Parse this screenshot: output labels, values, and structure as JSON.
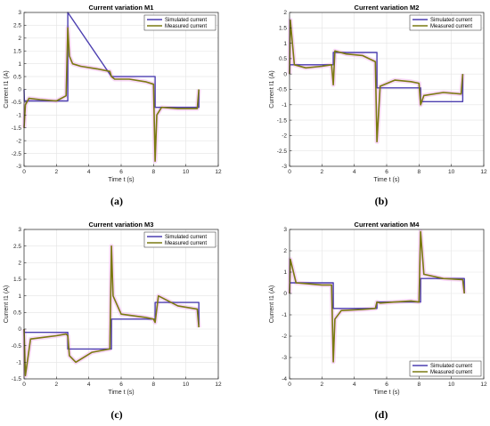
{
  "colors": {
    "simulated": "#4c3fb0",
    "measured": "#7a7a10",
    "noise": "#f2b8f0",
    "axis": "#262626",
    "grid": "#e4e4e4"
  },
  "chart_data": [
    {
      "type": "line",
      "panel": "(a)",
      "title": "Current variation M1",
      "xlabel": "Time t (s)",
      "ylabel": "Current I1 (A)",
      "xlim": [
        0,
        12
      ],
      "ylim": [
        -3,
        3
      ],
      "xticks": [
        0,
        2,
        4,
        6,
        8,
        10,
        12
      ],
      "yticks": [
        -3,
        -2.5,
        -2,
        -1.5,
        -1,
        -0.5,
        0,
        0.5,
        1,
        1.5,
        2,
        2.5,
        3
      ],
      "grid": true,
      "legend": "top-right",
      "series": [
        {
          "name": "Simulated current",
          "x": [
            0,
            0.02,
            2.7,
            2.7,
            5.4,
            5.4,
            8.1,
            8.1,
            10.8,
            10.8
          ],
          "y": [
            0,
            -0.45,
            -0.45,
            3.0,
            0.5,
            0.5,
            0.5,
            -0.7,
            -0.7,
            0
          ]
        },
        {
          "name": "Measured current",
          "x": [
            0,
            0.08,
            0.3,
            1.0,
            2.0,
            2.6,
            2.7,
            2.8,
            3.0,
            3.5,
            4.5,
            5.3,
            5.4,
            5.6,
            6.5,
            7.5,
            8.0,
            8.1,
            8.2,
            8.5,
            9.5,
            10.7,
            10.8
          ],
          "y": [
            -1.5,
            -0.6,
            -0.35,
            -0.4,
            -0.45,
            -0.25,
            2.4,
            1.3,
            1.0,
            0.9,
            0.8,
            0.7,
            0.5,
            0.4,
            0.4,
            0.3,
            0.2,
            -2.8,
            -1.0,
            -0.7,
            -0.75,
            -0.75,
            0.0
          ]
        }
      ]
    },
    {
      "type": "line",
      "panel": "(b)",
      "title": "Current variation M2",
      "xlabel": "Time t (s)",
      "ylabel": "Current I1 (A)",
      "xlim": [
        0,
        12
      ],
      "ylim": [
        -3,
        2
      ],
      "xticks": [
        0,
        2,
        4,
        6,
        8,
        10,
        12
      ],
      "yticks": [
        -3,
        -2.5,
        -2,
        -1.5,
        -1,
        -0.5,
        0,
        0.5,
        1,
        1.5,
        2
      ],
      "grid": true,
      "legend": "top-right",
      "series": [
        {
          "name": "Simulated current",
          "x": [
            0,
            0.02,
            2.7,
            2.7,
            5.4,
            5.4,
            8.1,
            8.1,
            10.7,
            10.7
          ],
          "y": [
            0,
            0.3,
            0.3,
            0.7,
            0.7,
            -0.45,
            -0.45,
            -0.9,
            -0.9,
            0
          ]
        },
        {
          "name": "Measured current",
          "x": [
            0,
            0.05,
            0.3,
            1.0,
            2.0,
            2.6,
            2.7,
            2.8,
            3.5,
            4.5,
            5.3,
            5.4,
            5.6,
            6.5,
            7.5,
            8.0,
            8.1,
            8.3,
            9.5,
            10.6,
            10.7
          ],
          "y": [
            0,
            1.75,
            0.3,
            0.2,
            0.25,
            0.3,
            -0.35,
            0.75,
            0.65,
            0.6,
            0.4,
            -2.2,
            -0.4,
            -0.2,
            -0.25,
            -0.3,
            -1.0,
            -0.7,
            -0.6,
            -0.65,
            0.0
          ]
        }
      ]
    },
    {
      "type": "line",
      "panel": "(c)",
      "title": "Current variation M3",
      "xlabel": "Time t (s)",
      "ylabel": "Current I1 (A)",
      "xlim": [
        0,
        12
      ],
      "ylim": [
        -1.5,
        3
      ],
      "xticks": [
        0,
        2,
        4,
        6,
        8,
        10,
        12
      ],
      "yticks": [
        -1.5,
        -1,
        -0.5,
        0,
        0.5,
        1,
        1.5,
        2,
        2.5,
        3
      ],
      "grid": true,
      "legend": "top-right",
      "series": [
        {
          "name": "Simulated current",
          "x": [
            0,
            0.02,
            2.7,
            2.7,
            5.4,
            5.4,
            8.1,
            8.1,
            10.8,
            10.8
          ],
          "y": [
            0,
            -0.1,
            -0.1,
            -0.6,
            -0.6,
            0.3,
            0.3,
            0.8,
            0.8,
            0.1
          ]
        },
        {
          "name": "Measured current",
          "x": [
            0,
            0.08,
            0.4,
            1.2,
            2.0,
            2.6,
            2.7,
            2.8,
            3.2,
            4.2,
            5.3,
            5.4,
            5.5,
            6.0,
            7.5,
            8.0,
            8.1,
            8.3,
            9.5,
            10.7,
            10.8
          ],
          "y": [
            0,
            -1.4,
            -0.3,
            -0.25,
            -0.2,
            -0.15,
            -0.2,
            -0.8,
            -1.0,
            -0.7,
            -0.6,
            2.5,
            1.0,
            0.45,
            0.35,
            0.3,
            0.2,
            1.0,
            0.7,
            0.6,
            0.05
          ]
        }
      ]
    },
    {
      "type": "line",
      "panel": "(d)",
      "title": "Current variation M4",
      "xlabel": "Time t (s)",
      "ylabel": "Current I1 (A)",
      "xlim": [
        0,
        12
      ],
      "ylim": [
        -4,
        3
      ],
      "xticks": [
        0,
        2,
        4,
        6,
        8,
        10,
        12
      ],
      "yticks": [
        -4,
        -3,
        -2,
        -1,
        0,
        1,
        2,
        3
      ],
      "grid": true,
      "legend": "bottom-right",
      "series": [
        {
          "name": "Simulated current",
          "x": [
            0,
            0.02,
            2.7,
            2.7,
            5.4,
            5.4,
            8.1,
            8.1,
            10.8,
            10.8
          ],
          "y": [
            0,
            0.5,
            0.5,
            -0.7,
            -0.7,
            -0.4,
            -0.4,
            0.7,
            0.7,
            0
          ]
        },
        {
          "name": "Measured current",
          "x": [
            0,
            0.05,
            0.4,
            1.2,
            2.0,
            2.6,
            2.7,
            2.8,
            3.2,
            4.5,
            5.3,
            5.4,
            5.6,
            6.5,
            7.5,
            8.0,
            8.1,
            8.3,
            9.5,
            10.7,
            10.8
          ],
          "y": [
            0,
            1.6,
            0.5,
            0.45,
            0.4,
            0.4,
            -3.2,
            -1.2,
            -0.8,
            -0.75,
            -0.7,
            -0.4,
            -0.45,
            -0.4,
            -0.35,
            -0.4,
            2.9,
            0.9,
            0.7,
            0.65,
            0.0
          ]
        }
      ]
    }
  ]
}
